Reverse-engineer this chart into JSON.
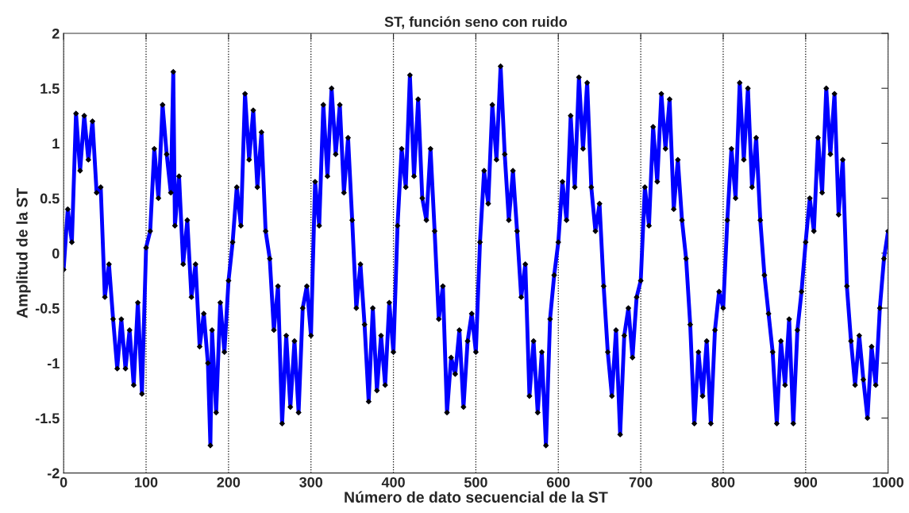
{
  "chart_data": {
    "type": "line",
    "title": "ST, función seno con ruido",
    "xlabel": "Número de dato secuencial de la ST",
    "ylabel": "Amplitud de la ST",
    "xlim": [
      0,
      1000
    ],
    "xticks": [
      0,
      100,
      200,
      300,
      400,
      500,
      600,
      700,
      800,
      900,
      1000
    ],
    "ylim": [
      -2,
      2
    ],
    "yticks": [
      -2,
      -1.5,
      -1,
      -0.5,
      0,
      0.5,
      1,
      1.5,
      2
    ],
    "grid": "x",
    "marker": "diamond",
    "line_style": "solid",
    "series": [
      {
        "color": "#0000ff",
        "x": [
          0,
          5,
          10,
          15,
          20,
          25,
          30,
          35,
          40,
          45,
          50,
          55,
          60,
          65,
          70,
          75,
          80,
          85,
          90,
          95,
          100,
          105,
          110,
          115,
          120,
          125,
          130,
          133,
          135,
          140,
          145,
          150,
          155,
          160,
          165,
          170,
          175,
          178,
          180,
          185,
          190,
          195,
          200,
          205,
          210,
          215,
          220,
          225,
          230,
          235,
          240,
          245,
          250,
          255,
          260,
          265,
          270,
          275,
          280,
          285,
          290,
          295,
          300,
          305,
          310,
          315,
          320,
          325,
          330,
          335,
          340,
          345,
          350,
          355,
          360,
          365,
          370,
          375,
          380,
          385,
          390,
          395,
          400,
          405,
          410,
          415,
          420,
          425,
          430,
          435,
          440,
          445,
          450,
          455,
          460,
          465,
          470,
          475,
          480,
          485,
          490,
          495,
          500,
          505,
          510,
          515,
          520,
          525,
          530,
          535,
          540,
          545,
          550,
          555,
          560,
          565,
          570,
          575,
          580,
          585,
          590,
          595,
          600,
          605,
          610,
          615,
          620,
          625,
          630,
          635,
          640,
          645,
          650,
          655,
          660,
          665,
          670,
          675,
          680,
          685,
          690,
          695,
          700,
          705,
          710,
          715,
          720,
          725,
          730,
          735,
          740,
          745,
          750,
          755,
          760,
          765,
          770,
          775,
          780,
          785,
          790,
          795,
          800,
          805,
          810,
          815,
          820,
          825,
          830,
          835,
          840,
          845,
          850,
          855,
          860,
          865,
          870,
          875,
          880,
          885,
          890,
          895,
          900,
          905,
          910,
          915,
          920,
          925,
          930,
          935,
          940,
          945,
          950,
          955,
          960,
          965,
          970,
          975,
          980,
          985,
          990,
          995,
          1000
        ],
        "values": [
          -0.15,
          0.4,
          0.1,
          1.27,
          0.75,
          1.25,
          0.85,
          1.2,
          0.55,
          0.6,
          -0.4,
          -0.1,
          -0.6,
          -1.05,
          -0.6,
          -1.05,
          -0.7,
          -1.2,
          -0.45,
          -1.28,
          0.05,
          0.2,
          0.95,
          0.5,
          1.35,
          0.9,
          0.55,
          1.65,
          0.25,
          0.7,
          -0.1,
          0.3,
          -0.4,
          -0.1,
          -0.85,
          -0.55,
          -1.0,
          -1.75,
          -0.7,
          -1.45,
          -0.45,
          -0.9,
          -0.25,
          0.1,
          0.6,
          0.25,
          1.45,
          0.85,
          1.3,
          0.6,
          1.1,
          0.2,
          -0.05,
          -0.7,
          -0.3,
          -1.55,
          -0.75,
          -1.4,
          -0.8,
          -1.45,
          -0.5,
          -0.3,
          -0.75,
          0.65,
          0.25,
          1.35,
          0.7,
          1.5,
          0.9,
          1.35,
          0.55,
          1.05,
          0.3,
          -0.5,
          -0.1,
          -0.65,
          -1.35,
          -0.5,
          -1.25,
          -0.75,
          -1.2,
          -0.45,
          -0.9,
          0.25,
          0.95,
          0.6,
          1.62,
          0.7,
          1.4,
          0.5,
          0.3,
          0.95,
          0.2,
          -0.6,
          -0.3,
          -1.45,
          -0.95,
          -1.1,
          -0.7,
          -1.4,
          -0.8,
          -0.55,
          -0.9,
          0.1,
          0.75,
          0.45,
          1.35,
          0.85,
          1.7,
          0.9,
          0.3,
          0.75,
          0.2,
          -0.4,
          -0.1,
          -1.3,
          -0.8,
          -1.45,
          -0.9,
          -1.75,
          -0.6,
          -0.2,
          0.1,
          0.65,
          0.3,
          1.25,
          0.6,
          1.6,
          0.95,
          1.55,
          0.6,
          0.2,
          0.45,
          -0.3,
          -0.9,
          -1.3,
          -0.7,
          -1.65,
          -0.75,
          -0.5,
          -0.95,
          -0.4,
          -0.25,
          0.6,
          0.25,
          1.15,
          0.65,
          1.45,
          0.95,
          1.4,
          0.4,
          0.85,
          0.3,
          -0.05,
          -0.65,
          -1.55,
          -0.9,
          -1.3,
          -0.8,
          -1.55,
          -0.7,
          -0.35,
          -0.5,
          0.3,
          0.95,
          0.5,
          1.55,
          0.85,
          1.5,
          0.6,
          1.05,
          0.3,
          -0.2,
          -0.55,
          -0.9,
          -1.55,
          -0.8,
          -1.2,
          -0.6,
          -1.55,
          -0.7,
          -0.35,
          0.1,
          0.5,
          0.2,
          1.05,
          0.55,
          1.5,
          0.9,
          1.45,
          0.35,
          0.85,
          -0.3,
          -0.8,
          -1.2,
          -0.75,
          -1.15,
          -1.5,
          -0.85,
          -1.2,
          -0.5,
          -0.05,
          0.2
        ]
      }
    ]
  }
}
